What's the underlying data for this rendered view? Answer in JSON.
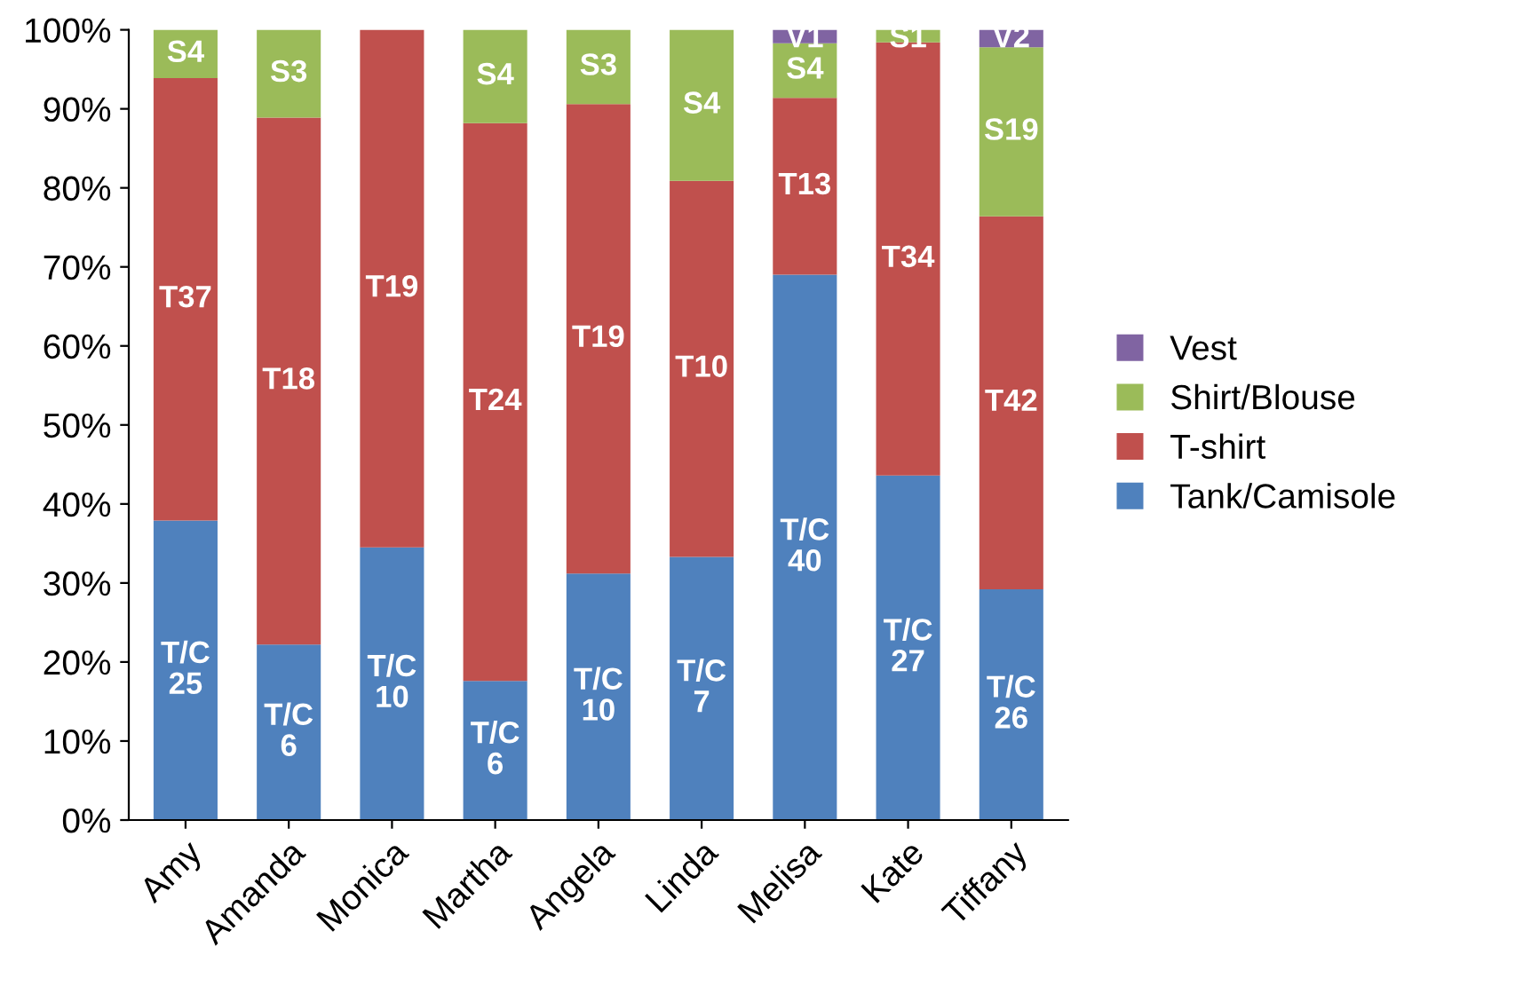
{
  "chart_data": {
    "type": "bar",
    "stacked": true,
    "categories": [
      "Amy",
      "Amanda",
      "Monica",
      "Martha",
      "Angela",
      "Linda",
      "Melisa",
      "Kate",
      "Tiffany"
    ],
    "series": [
      {
        "name": "Tank/Camisole",
        "color": "#4f81bd",
        "values": [
          37.9,
          22.2,
          34.5,
          17.6,
          31.2,
          33.3,
          69.0,
          43.6,
          29.2
        ],
        "value_labels": [
          "T/C\n25",
          "T/C\n6",
          "T/C\n10",
          "T/C\n6",
          "T/C\n10",
          "T/C\n7",
          "T/C\n40",
          "T/C\n27",
          "T/C\n26"
        ]
      },
      {
        "name": "T-shirt",
        "color": "#c0504d",
        "values": [
          56.0,
          66.7,
          65.5,
          70.6,
          59.4,
          47.6,
          22.4,
          54.8,
          47.2
        ],
        "value_labels": [
          "T37",
          "T18",
          "T19",
          "T24",
          "T19",
          "T10",
          "T13",
          "T34",
          "T42"
        ]
      },
      {
        "name": "Shirt/Blouse",
        "color": "#9bbb59",
        "values": [
          6.1,
          11.1,
          null,
          11.8,
          9.4,
          19.1,
          6.9,
          1.6,
          21.4
        ],
        "value_labels": [
          "S4",
          "S3",
          null,
          "S4",
          "S3",
          "S4",
          "S4",
          "S1",
          "S19"
        ]
      },
      {
        "name": "Vest",
        "color": "#8064a2",
        "values": [
          null,
          null,
          null,
          null,
          null,
          null,
          1.7,
          null,
          2.2
        ],
        "value_labels": [
          null,
          null,
          null,
          null,
          null,
          null,
          "V1",
          null,
          "V2"
        ]
      }
    ],
    "ylim": [
      0,
      100
    ],
    "yticks": [
      {
        "value": 0,
        "label": "0%"
      },
      {
        "value": 10,
        "label": "10%"
      },
      {
        "value": 20,
        "label": "20%"
      },
      {
        "value": 30,
        "label": "30%"
      },
      {
        "value": 40,
        "label": "40%"
      },
      {
        "value": 50,
        "label": "50%"
      },
      {
        "value": 60,
        "label": "60%"
      },
      {
        "value": 70,
        "label": "70%"
      },
      {
        "value": 80,
        "label": "80%"
      },
      {
        "value": 90,
        "label": "90%"
      },
      {
        "value": 100,
        "label": "100%"
      }
    ],
    "legend": "right",
    "grid": false
  }
}
